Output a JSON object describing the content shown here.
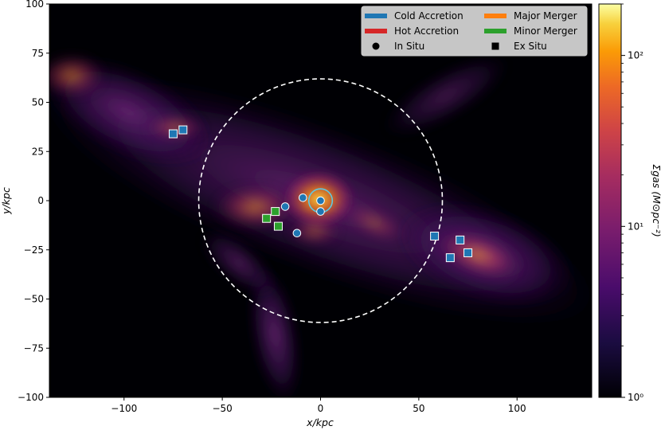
{
  "chart_data": {
    "type": "scatter",
    "title": "",
    "xlabel": "x/kpc",
    "ylabel": "y/kpc",
    "xlim": [
      -138,
      138
    ],
    "ylim": [
      -100,
      100
    ],
    "xticks": [
      -100,
      -50,
      0,
      50,
      100
    ],
    "yticks": [
      -100,
      -75,
      -50,
      -25,
      0,
      25,
      50,
      75,
      100
    ],
    "xtick_labels": [
      "−100",
      "−50",
      "0",
      "50",
      "100"
    ],
    "ytick_labels": [
      "−100",
      "−75",
      "−50",
      "−25",
      "0",
      "25",
      "50",
      "75",
      "100"
    ],
    "background": "gas surface density map",
    "virial_circle": {
      "center": [
        0,
        0
      ],
      "radius": 62,
      "style": "dashed",
      "color": "#ffffff"
    },
    "galaxy_circle": {
      "center": [
        0,
        0
      ],
      "radius": 6,
      "color": "#5fc8e0"
    },
    "colorbar": {
      "label": "Σgas (M⊙pc⁻²)",
      "scale": "log",
      "range": [
        1,
        200
      ],
      "tick_labels": [
        "10⁰",
        "10¹",
        "10²"
      ],
      "colormap": "inferno"
    },
    "legend": {
      "placement": "top-right",
      "entries": [
        {
          "label": "Cold Accretion",
          "kind": "line",
          "color": "#1f77b4"
        },
        {
          "label": "Major Merger",
          "kind": "line",
          "color": "#ff7f0e"
        },
        {
          "label": "Hot Accretion",
          "kind": "line",
          "color": "#d62728"
        },
        {
          "label": "Minor Merger",
          "kind": "line",
          "color": "#2ca02c"
        },
        {
          "label": "In Situ",
          "kind": "circle",
          "color": "#000000"
        },
        {
          "label": "Ex Situ",
          "kind": "square",
          "color": "#000000"
        }
      ]
    },
    "series": [
      {
        "category": "Cold Accretion",
        "marker": "circle",
        "color": "#1f77b4",
        "points": [
          [
            -18,
            -3
          ],
          [
            -12,
            -16.5
          ],
          [
            -9,
            1.5
          ],
          [
            0,
            0
          ],
          [
            0,
            -5.5
          ]
        ]
      },
      {
        "category": "Cold Accretion",
        "marker": "square",
        "color": "#1f77b4",
        "points": [
          [
            -75,
            34
          ],
          [
            -70,
            36
          ],
          [
            58,
            -18
          ],
          [
            66,
            -29
          ],
          [
            71,
            -20
          ],
          [
            75,
            -26.5
          ]
        ]
      },
      {
        "category": "Minor Merger",
        "marker": "square",
        "color": "#2ca02c",
        "points": [
          [
            -27.5,
            -9
          ],
          [
            -23,
            -5.5
          ],
          [
            -21.5,
            -13
          ]
        ]
      }
    ]
  }
}
